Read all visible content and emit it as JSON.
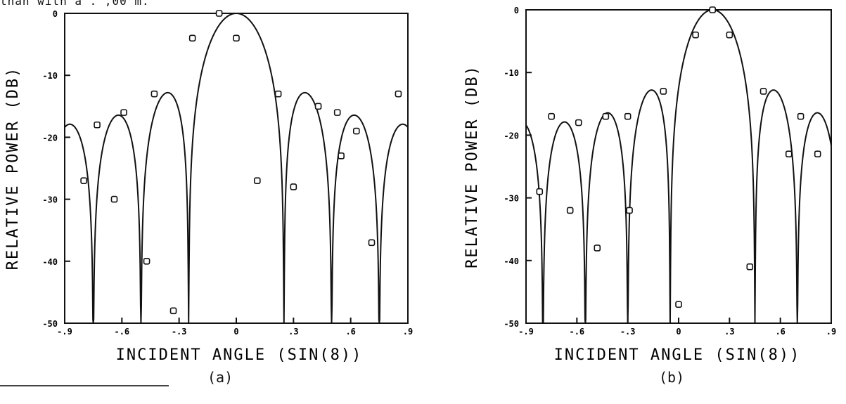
{
  "page": {
    "top_fragment": "than with a   .  ,00 m."
  },
  "chart_data": [
    {
      "type": "line",
      "panel_label": "(a)",
      "xlabel": "INCIDENT ANGLE  (SIN(8))",
      "ylabel": "RELATIVE POWER  (DB)",
      "xlim": [
        -0.9,
        0.9
      ],
      "ylim": [
        -50,
        0
      ],
      "x_ticks": [
        -0.9,
        -0.6,
        -0.3,
        0,
        0.3,
        0.6,
        0.9
      ],
      "x_tick_labels": [
        "-.9",
        "-.6",
        "-.3",
        "0",
        ".3",
        ".6",
        ".9"
      ],
      "y_ticks": [
        0,
        -10,
        -20,
        -30,
        -40,
        -50
      ],
      "y_tick_labels": [
        "0",
        "-10",
        "-20",
        "-30",
        "-40",
        "-50"
      ],
      "grid": false,
      "legend": "none",
      "pattern": {
        "N": 8,
        "steer": 0.0,
        "d": 0.5
      },
      "series": [
        {
          "marker": "square",
          "x": [
            -0.8,
            -0.73,
            -0.64,
            -0.59,
            -0.47,
            -0.43,
            -0.33,
            -0.23,
            -0.09,
            0.0,
            0.11,
            0.22,
            0.3,
            0.43,
            0.53,
            0.55,
            0.63,
            0.71,
            0.85
          ],
          "y": [
            -27,
            -18,
            -30,
            -16,
            -40,
            -13,
            -48,
            -4,
            0,
            -4,
            -27,
            -13,
            -28,
            -15,
            -16,
            -23,
            -19,
            -37,
            -13
          ]
        }
      ]
    },
    {
      "type": "line",
      "panel_label": "(b)",
      "xlabel": "INCIDENT ANGLE  (SIN(8))",
      "ylabel": "RELATIVE POWER  (DB)",
      "xlim": [
        -0.9,
        0.9
      ],
      "ylim": [
        -50,
        0
      ],
      "x_ticks": [
        -0.9,
        -0.6,
        -0.3,
        0,
        0.3,
        0.6,
        0.9
      ],
      "x_tick_labels": [
        "-.9",
        "-.6",
        "-.3",
        "0",
        ".3",
        ".6",
        ".9"
      ],
      "y_ticks": [
        0,
        -10,
        -20,
        -30,
        -40,
        -50
      ],
      "y_tick_labels": [
        "0",
        "-10",
        "-20",
        "-30",
        "-40",
        "-50"
      ],
      "grid": false,
      "legend": "none",
      "pattern": {
        "N": 8,
        "steer": 0.2,
        "d": 0.5
      },
      "series": [
        {
          "marker": "square",
          "x": [
            -0.82,
            -0.75,
            -0.64,
            -0.59,
            -0.48,
            -0.43,
            -0.3,
            -0.29,
            -0.09,
            0.0,
            0.1,
            0.2,
            0.3,
            0.42,
            0.5,
            0.65,
            0.72,
            0.82
          ],
          "y": [
            -29,
            -17,
            -32,
            -18,
            -38,
            -17,
            -17,
            -32,
            -13,
            -47,
            -4,
            0,
            -4,
            -41,
            -13,
            -23,
            -17,
            -23
          ]
        }
      ]
    }
  ]
}
